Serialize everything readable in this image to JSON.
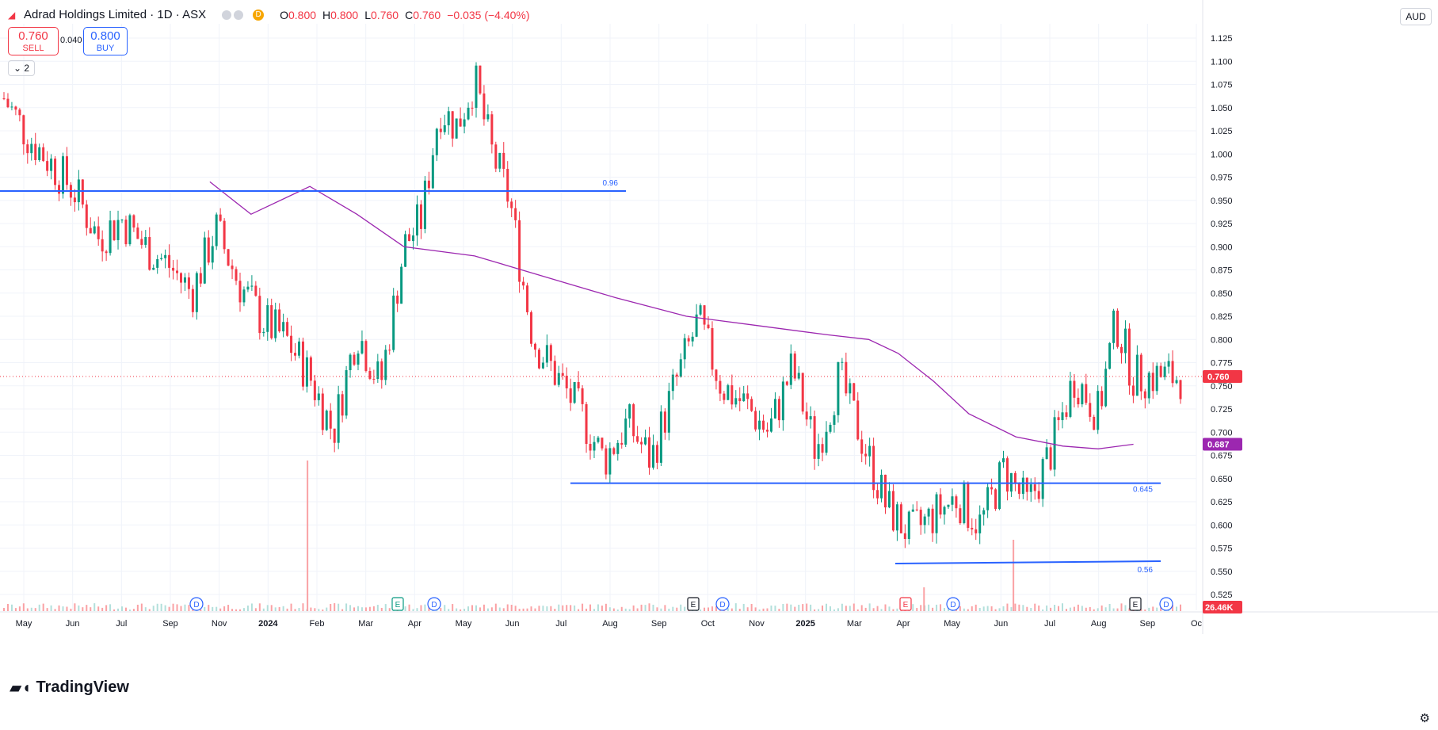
{
  "header": {
    "title": "Adrad Holdings Limited · 1D · ASX",
    "ohlc": [
      {
        "k": "O",
        "v": "0.800"
      },
      {
        "k": "H",
        "v": "0.800"
      },
      {
        "k": "L",
        "v": "0.760"
      },
      {
        "k": "C",
        "v": "0.760"
      },
      {
        "k": "",
        "v": "−0.035 (−4.40%)"
      }
    ],
    "d_badge": "D"
  },
  "trade": {
    "sell_price": "0.760",
    "sell_label": "SELL",
    "buy_price": "0.800",
    "buy_label": "BUY",
    "spread": "0.040"
  },
  "indicators_collapsed": "2",
  "currency": "AUD",
  "brand": "TradingView",
  "colors": {
    "up": "#089981",
    "down": "#f23645",
    "ma": "#9c27b0",
    "hline": "#2962ff",
    "grid": "#f0f3fa",
    "axis_text": "#131722"
  },
  "chart_data": {
    "type": "candlestick",
    "y_ticks": [
      "1.125",
      "1.100",
      "1.075",
      "1.050",
      "1.025",
      "1.000",
      "0.975",
      "0.950",
      "0.925",
      "0.900",
      "0.875",
      "0.850",
      "0.825",
      "0.800",
      "0.775",
      "0.750",
      "0.725",
      "0.700",
      "0.675",
      "0.650",
      "0.625",
      "0.600",
      "0.575",
      "0.550",
      "0.525"
    ],
    "ylim": [
      0.51,
      1.14
    ],
    "x_ticks": [
      "May",
      "Jun",
      "Jul",
      "Sep",
      "Nov",
      "2024",
      "Feb",
      "Mar",
      "Apr",
      "May",
      "Jun",
      "Jul",
      "Aug",
      "Sep",
      "Oct",
      "Nov",
      "2025",
      "Mar",
      "Apr",
      "May",
      "Jun",
      "Jul",
      "Aug",
      "Sep",
      "Oc"
    ],
    "last_price": "0.760",
    "ma_value": "0.687",
    "volume_label": "26.46K",
    "horizontal_lines": [
      {
        "label": "0.96",
        "value": 0.96
      },
      {
        "label": "0.645",
        "value": 0.645
      },
      {
        "label": "0.56",
        "value": 0.56
      }
    ],
    "events": [
      {
        "type": "D",
        "pos": "Sep 2023"
      },
      {
        "type": "E",
        "pos": "Feb 2024"
      },
      {
        "type": "D",
        "pos": "Mar 2024"
      },
      {
        "type": "E",
        "pos": "Aug 2024"
      },
      {
        "type": "D",
        "pos": "Sep 2024"
      },
      {
        "type": "E",
        "pos": "Feb 2025"
      },
      {
        "type": "D",
        "pos": "Mar 2025"
      },
      {
        "type": "E",
        "pos": "Aug 2025"
      },
      {
        "type": "D",
        "pos": "Sep 2025"
      }
    ],
    "ma_series": [
      {
        "t": 0.175,
        "v": 0.97
      },
      {
        "t": 0.21,
        "v": 0.935
      },
      {
        "t": 0.26,
        "v": 0.965
      },
      {
        "t": 0.3,
        "v": 0.935
      },
      {
        "t": 0.34,
        "v": 0.9
      },
      {
        "t": 0.4,
        "v": 0.89
      },
      {
        "t": 0.44,
        "v": 0.875
      },
      {
        "t": 0.48,
        "v": 0.86
      },
      {
        "t": 0.52,
        "v": 0.845
      },
      {
        "t": 0.58,
        "v": 0.825
      },
      {
        "t": 0.64,
        "v": 0.815
      },
      {
        "t": 0.7,
        "v": 0.805
      },
      {
        "t": 0.735,
        "v": 0.8
      },
      {
        "t": 0.76,
        "v": 0.785
      },
      {
        "t": 0.79,
        "v": 0.755
      },
      {
        "t": 0.82,
        "v": 0.72
      },
      {
        "t": 0.86,
        "v": 0.695
      },
      {
        "t": 0.9,
        "v": 0.685
      },
      {
        "t": 0.93,
        "v": 0.682
      },
      {
        "t": 0.96,
        "v": 0.687
      }
    ],
    "closes": [
      {
        "t": 0.0,
        "v": 1.06
      },
      {
        "t": 0.02,
        "v": 1.02
      },
      {
        "t": 0.04,
        "v": 0.99
      },
      {
        "t": 0.06,
        "v": 0.96
      },
      {
        "t": 0.08,
        "v": 0.91
      },
      {
        "t": 0.1,
        "v": 0.93
      },
      {
        "t": 0.12,
        "v": 0.9
      },
      {
        "t": 0.14,
        "v": 0.88
      },
      {
        "t": 0.16,
        "v": 0.85
      },
      {
        "t": 0.18,
        "v": 0.92
      },
      {
        "t": 0.2,
        "v": 0.86
      },
      {
        "t": 0.22,
        "v": 0.82
      },
      {
        "t": 0.24,
        "v": 0.8
      },
      {
        "t": 0.26,
        "v": 0.76
      },
      {
        "t": 0.28,
        "v": 0.7
      },
      {
        "t": 0.3,
        "v": 0.81
      },
      {
        "t": 0.32,
        "v": 0.75
      },
      {
        "t": 0.34,
        "v": 0.9
      },
      {
        "t": 0.355,
        "v": 0.93
      },
      {
        "t": 0.37,
        "v": 1.05
      },
      {
        "t": 0.385,
        "v": 1.03
      },
      {
        "t": 0.4,
        "v": 1.08
      },
      {
        "t": 0.415,
        "v": 1.0
      },
      {
        "t": 0.43,
        "v": 0.95
      },
      {
        "t": 0.44,
        "v": 0.87
      },
      {
        "t": 0.45,
        "v": 0.8
      },
      {
        "t": 0.47,
        "v": 0.76
      },
      {
        "t": 0.49,
        "v": 0.72
      },
      {
        "t": 0.51,
        "v": 0.67
      },
      {
        "t": 0.53,
        "v": 0.71
      },
      {
        "t": 0.55,
        "v": 0.67
      },
      {
        "t": 0.57,
        "v": 0.75
      },
      {
        "t": 0.59,
        "v": 0.82
      },
      {
        "t": 0.61,
        "v": 0.75
      },
      {
        "t": 0.63,
        "v": 0.73
      },
      {
        "t": 0.65,
        "v": 0.7
      },
      {
        "t": 0.67,
        "v": 0.77
      },
      {
        "t": 0.69,
        "v": 0.68
      },
      {
        "t": 0.71,
        "v": 0.76
      },
      {
        "t": 0.73,
        "v": 0.69
      },
      {
        "t": 0.75,
        "v": 0.62
      },
      {
        "t": 0.77,
        "v": 0.59
      },
      {
        "t": 0.79,
        "v": 0.61
      },
      {
        "t": 0.81,
        "v": 0.63
      },
      {
        "t": 0.83,
        "v": 0.6
      },
      {
        "t": 0.85,
        "v": 0.66
      },
      {
        "t": 0.87,
        "v": 0.62
      },
      {
        "t": 0.89,
        "v": 0.68
      },
      {
        "t": 0.91,
        "v": 0.76
      },
      {
        "t": 0.93,
        "v": 0.72
      },
      {
        "t": 0.945,
        "v": 0.82
      },
      {
        "t": 0.96,
        "v": 0.76
      }
    ]
  }
}
